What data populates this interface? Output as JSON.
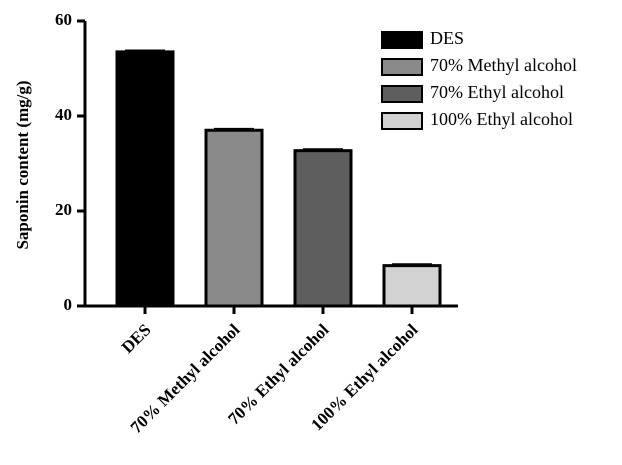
{
  "chart_data": {
    "type": "bar",
    "y_label": "Saponin content (mg/g)",
    "categories": [
      "DES",
      "70% Methyl alcohol",
      "70% Ethyl alcohol",
      "100% Ethyl alcohol"
    ],
    "values": [
      53.5,
      37,
      32.7,
      8.5
    ],
    "errors": [
      0.3,
      0.3,
      0.3,
      0.3
    ],
    "colors": [
      "#000000",
      "#8a8a8a",
      "#5e5e5e",
      "#d2d2d2"
    ],
    "ylim": [
      0,
      60
    ],
    "yticks": [
      0,
      20,
      40,
      60
    ],
    "legend": true,
    "legend_position": "top-right"
  }
}
